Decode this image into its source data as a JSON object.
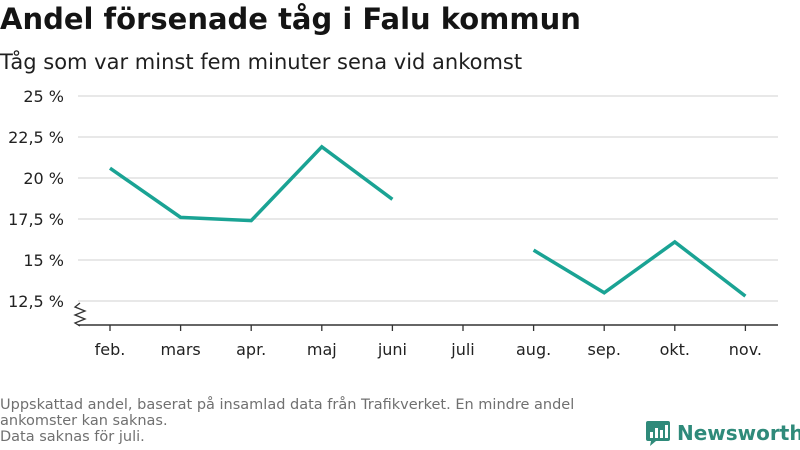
{
  "header": {
    "title": "Andel försenade tåg i Falu kommun",
    "subtitle": "Tåg som var minst fem minuter sena vid ankomst"
  },
  "chart_data": {
    "type": "line",
    "categories": [
      "feb.",
      "mars",
      "apr.",
      "maj",
      "juni",
      "juli",
      "aug.",
      "sep.",
      "okt.",
      "nov."
    ],
    "values": [
      20.6,
      17.6,
      17.4,
      21.9,
      18.7,
      null,
      15.6,
      13.0,
      16.1,
      12.8
    ],
    "yticks": [
      12.5,
      15,
      17.5,
      20,
      22.5,
      25
    ],
    "ytick_labels": [
      "12,5 %",
      "15 %",
      "17,5 %",
      "20 %",
      "22,5 %",
      "25 %"
    ],
    "ylim": [
      12.5,
      25
    ],
    "y_axis_break": true,
    "grid": true,
    "line_color": "#1aa394",
    "grid_color": "#d9d9d9",
    "axis_color": "#333333"
  },
  "footer": {
    "note_line1": "Uppskattad andel, baserat på insamlad data från Trafikverket. En mindre andel ankomster kan saknas.",
    "note_line2": "Data saknas för juli."
  },
  "brand": {
    "name": "Newsworthy",
    "logo_icon": "newsworthy-logo-icon",
    "color": "#2f8a7a"
  }
}
